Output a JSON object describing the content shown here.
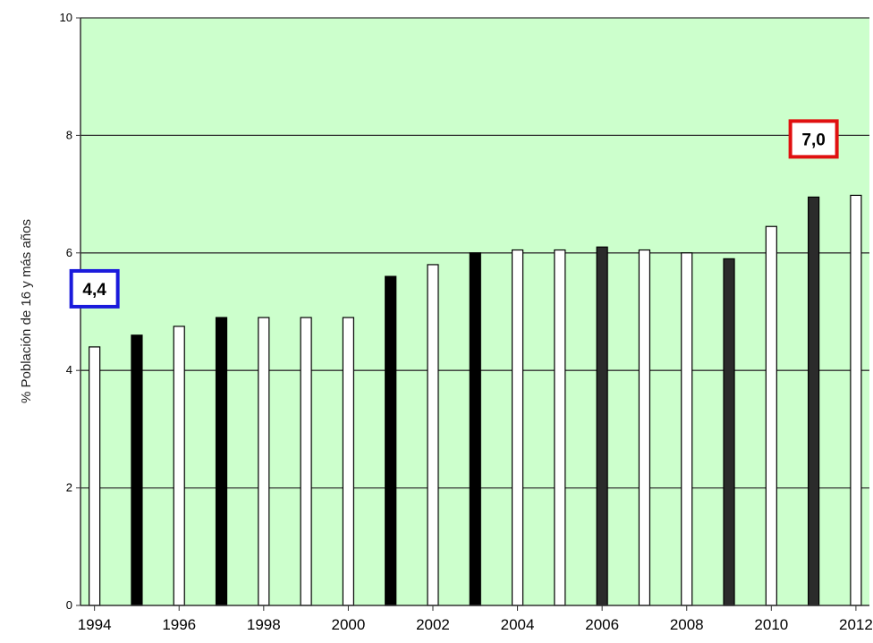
{
  "chart_data": {
    "type": "bar",
    "title": "",
    "xlabel": "",
    "ylabel": "% Población de 16 y más años",
    "ylim": [
      0,
      10
    ],
    "yticks": [
      "0",
      "2",
      "4",
      "6",
      "8",
      "10"
    ],
    "xtick_labels": [
      "1994",
      "1996",
      "1998",
      "2000",
      "2002",
      "2004",
      "2006",
      "2008",
      "2010",
      "2012"
    ],
    "grid": true,
    "categories": [
      "1994",
      "1995",
      "1996",
      "1997",
      "1998",
      "1999",
      "2000",
      "2001",
      "2002",
      "2003",
      "2004",
      "2005",
      "2006",
      "2007",
      "2008",
      "2009",
      "2010",
      "2011",
      "2012"
    ],
    "values": [
      4.4,
      4.6,
      4.75,
      4.9,
      4.9,
      4.9,
      4.9,
      5.6,
      5.8,
      6.0,
      6.05,
      6.05,
      6.1,
      6.05,
      6.0,
      5.9,
      6.45,
      6.95,
      6.98
    ],
    "bar_styles": [
      "white",
      "black",
      "white",
      "black",
      "white",
      "white",
      "white",
      "black",
      "white",
      "black",
      "white",
      "white",
      "darkgray",
      "white",
      "white",
      "darkgray",
      "white",
      "darkgray",
      "white"
    ],
    "annotations": [
      {
        "label": "4,4",
        "category": "1994",
        "color": "#1a1adc"
      },
      {
        "label": "7,0",
        "category": "2011",
        "color": "#e01010"
      }
    ],
    "colors": {
      "plot_bg": "#ccffcc",
      "grid": "#333333",
      "white_bar": "#ffffff",
      "black_bar": "#000000",
      "darkgray_bar": "#2b2b2b"
    }
  }
}
